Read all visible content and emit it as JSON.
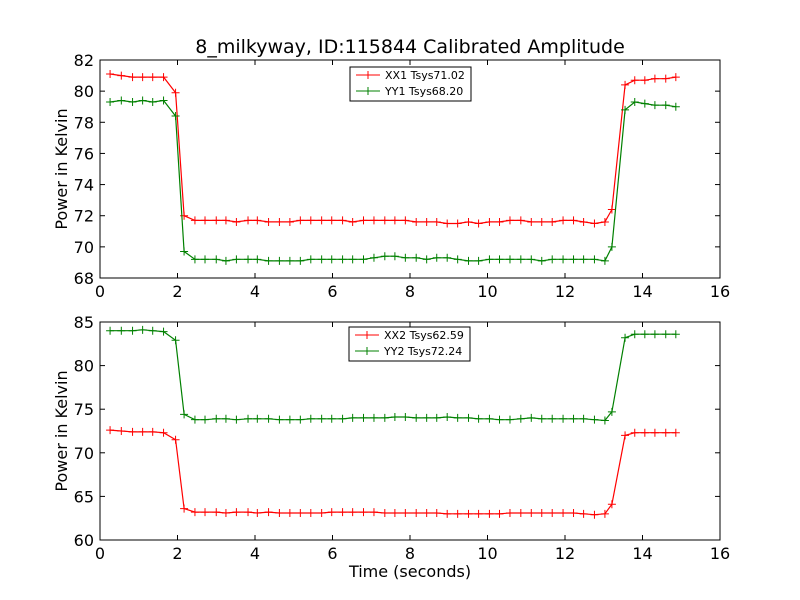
{
  "title": "8_milkyway, ID:115844 Calibrated Amplitude",
  "xlabel": "Time (seconds)",
  "chart_data": [
    {
      "type": "line",
      "ylabel": "Power in Kelvin",
      "xlim": [
        0,
        16
      ],
      "ylim": [
        68,
        82
      ],
      "x_ticks": [
        "0",
        "2",
        "4",
        "6",
        "8",
        "10",
        "12",
        "14",
        "16"
      ],
      "y_ticks": [
        "68",
        "70",
        "72",
        "74",
        "76",
        "78",
        "80",
        "82"
      ],
      "legend_position": "top-center",
      "x": [
        0.26,
        0.55,
        0.84,
        1.1,
        1.36,
        1.64,
        1.95,
        2.17,
        2.45,
        2.71,
        3.0,
        3.25,
        3.52,
        3.82,
        4.06,
        4.35,
        4.63,
        4.9,
        5.17,
        5.44,
        5.72,
        5.98,
        6.26,
        6.52,
        6.8,
        7.07,
        7.35,
        7.61,
        7.88,
        8.16,
        8.43,
        8.69,
        8.96,
        9.23,
        9.51,
        9.77,
        10.05,
        10.31,
        10.58,
        10.86,
        11.13,
        11.4,
        11.67,
        11.95,
        12.22,
        12.48,
        12.76,
        13.03,
        13.21,
        13.55,
        13.8,
        14.06,
        14.32,
        14.6,
        14.86
      ],
      "series": [
        {
          "name": "XX1 Tsys71.02",
          "color": "#ff0000",
          "values": [
            81.1,
            81.0,
            80.9,
            80.9,
            80.9,
            80.9,
            79.9,
            72.0,
            71.7,
            71.7,
            71.7,
            71.7,
            71.6,
            71.7,
            71.7,
            71.6,
            71.6,
            71.6,
            71.7,
            71.7,
            71.7,
            71.7,
            71.7,
            71.6,
            71.7,
            71.7,
            71.7,
            71.7,
            71.7,
            71.6,
            71.6,
            71.6,
            71.5,
            71.5,
            71.6,
            71.5,
            71.6,
            71.6,
            71.7,
            71.7,
            71.6,
            71.6,
            71.6,
            71.7,
            71.7,
            71.6,
            71.5,
            71.6,
            72.4,
            80.4,
            80.7,
            80.7,
            80.8,
            80.8,
            80.9
          ]
        },
        {
          "name": "YY1 Tsys68.20",
          "color": "#008000",
          "values": [
            79.3,
            79.4,
            79.3,
            79.4,
            79.3,
            79.4,
            78.4,
            69.7,
            69.2,
            69.2,
            69.2,
            69.1,
            69.2,
            69.2,
            69.2,
            69.1,
            69.1,
            69.1,
            69.1,
            69.2,
            69.2,
            69.2,
            69.2,
            69.2,
            69.2,
            69.3,
            69.4,
            69.4,
            69.3,
            69.3,
            69.2,
            69.3,
            69.3,
            69.2,
            69.1,
            69.1,
            69.2,
            69.2,
            69.2,
            69.2,
            69.2,
            69.1,
            69.2,
            69.2,
            69.2,
            69.2,
            69.2,
            69.1,
            70.0,
            78.8,
            79.3,
            79.2,
            79.1,
            79.1,
            79.0
          ]
        }
      ]
    },
    {
      "type": "line",
      "ylabel": "Power in Kelvin",
      "xlabel": "Time (seconds)",
      "xlim": [
        0,
        16
      ],
      "ylim": [
        60,
        85
      ],
      "x_ticks": [
        "0",
        "2",
        "4",
        "6",
        "8",
        "10",
        "12",
        "14",
        "16"
      ],
      "y_ticks": [
        "60",
        "65",
        "70",
        "75",
        "80",
        "85"
      ],
      "legend_position": "top-center",
      "x": [
        0.26,
        0.55,
        0.84,
        1.1,
        1.36,
        1.64,
        1.95,
        2.17,
        2.45,
        2.71,
        3.0,
        3.25,
        3.52,
        3.82,
        4.06,
        4.35,
        4.63,
        4.9,
        5.17,
        5.44,
        5.72,
        5.98,
        6.26,
        6.52,
        6.8,
        7.07,
        7.35,
        7.61,
        7.88,
        8.16,
        8.43,
        8.69,
        8.96,
        9.23,
        9.51,
        9.77,
        10.05,
        10.31,
        10.58,
        10.86,
        11.13,
        11.4,
        11.67,
        11.95,
        12.22,
        12.48,
        12.76,
        13.03,
        13.21,
        13.55,
        13.8,
        14.06,
        14.32,
        14.6,
        14.86
      ],
      "series": [
        {
          "name": "XX2 Tsys62.59",
          "color": "#ff0000",
          "values": [
            72.6,
            72.5,
            72.4,
            72.4,
            72.4,
            72.3,
            71.5,
            63.6,
            63.2,
            63.2,
            63.2,
            63.1,
            63.2,
            63.2,
            63.1,
            63.2,
            63.1,
            63.1,
            63.1,
            63.1,
            63.1,
            63.2,
            63.2,
            63.2,
            63.2,
            63.2,
            63.1,
            63.1,
            63.1,
            63.1,
            63.1,
            63.1,
            63.0,
            63.0,
            63.0,
            63.0,
            63.0,
            63.0,
            63.1,
            63.1,
            63.1,
            63.1,
            63.1,
            63.1,
            63.1,
            63.0,
            62.9,
            63.0,
            64.1,
            72.0,
            72.3,
            72.3,
            72.3,
            72.3,
            72.3
          ]
        },
        {
          "name": "YY2 Tsys72.24",
          "color": "#008000",
          "values": [
            84.0,
            84.0,
            84.0,
            84.1,
            84.0,
            83.9,
            82.9,
            74.4,
            73.8,
            73.8,
            73.9,
            73.9,
            73.8,
            73.9,
            73.9,
            73.9,
            73.8,
            73.8,
            73.8,
            73.9,
            73.9,
            73.9,
            73.9,
            74.0,
            74.0,
            74.0,
            74.0,
            74.1,
            74.1,
            74.0,
            74.0,
            74.0,
            74.1,
            74.0,
            74.0,
            73.9,
            73.9,
            73.8,
            73.8,
            73.9,
            74.0,
            73.9,
            73.9,
            73.9,
            73.9,
            73.9,
            73.8,
            73.7,
            74.7,
            83.2,
            83.6,
            83.6,
            83.6,
            83.6,
            83.6
          ]
        }
      ]
    }
  ]
}
